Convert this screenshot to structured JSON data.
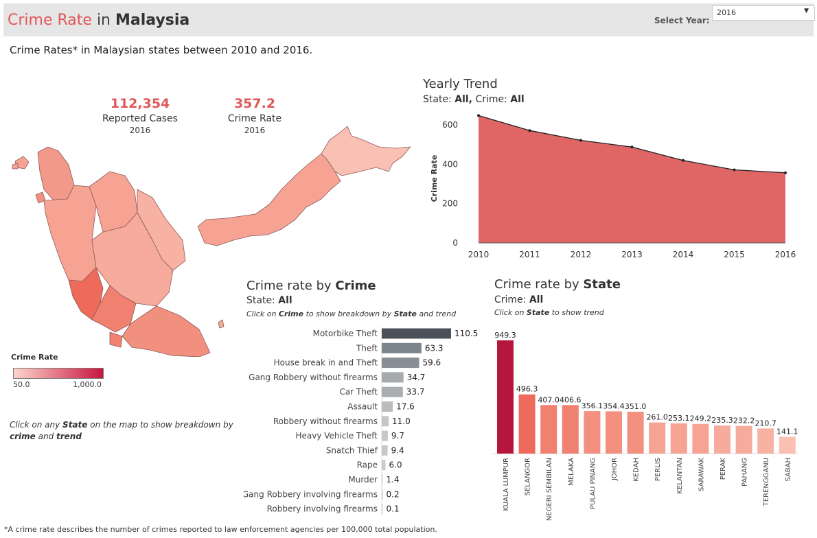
{
  "header": {
    "title_part1": "Crime Rate",
    "title_part2": "in",
    "title_part3": "Malaysia",
    "year_label": "Select Year:",
    "year_value": "2016",
    "caret_icon": "chevron-down-icon"
  },
  "subtitle": "Crime Rates* in Malaysian states between 2010 and 2016.",
  "kpis": {
    "cases_value": "112,354",
    "cases_label": "Reported Cases",
    "cases_year": "2016",
    "rate_value": "357.2",
    "rate_label": "Crime Rate",
    "rate_year": "2016"
  },
  "map": {
    "legend_title": "Crime Rate",
    "legend_min": "50.0",
    "legend_max": "1,000.0",
    "legend_color_low": "#fdd5cc",
    "legend_color_high": "#c7153e",
    "note_parts": [
      "Click on any ",
      "State",
      " on the map to show breakdown by ",
      "crime",
      " and ",
      "trend"
    ]
  },
  "trend": {
    "title": "Yearly Trend",
    "sub_prefix": "State:",
    "sub_state": "All,",
    "sub_crime_label": "Crime:",
    "sub_crime": "All"
  },
  "crime_panel": {
    "title_prefix": "Crime rate by",
    "title_bold": "Crime",
    "sub_prefix": "State:",
    "sub_value": "All",
    "note_parts": [
      "Click on ",
      "Crime",
      " to show breakdown by ",
      "State",
      " and trend"
    ]
  },
  "state_panel": {
    "title_prefix": "Crime rate by",
    "title_bold": "State",
    "sub_prefix": "Crime:",
    "sub_value": "All",
    "note_parts": [
      "Click on ",
      "State",
      " to show trend"
    ]
  },
  "footnote": "*A crime rate describes the number of crimes reported to law enforcement agencies per 100,000 total population.",
  "chart_data": [
    {
      "type": "area",
      "title": "Yearly Trend",
      "ylabel": "Crime Rate",
      "x": [
        2010,
        2011,
        2012,
        2013,
        2014,
        2015,
        2016
      ],
      "values": [
        648,
        572,
        522,
        488,
        420,
        372,
        357
      ],
      "yticks": [
        0,
        200,
        400,
        600
      ],
      "ylim": [
        0,
        660
      ],
      "color": "#e06666"
    },
    {
      "type": "bar",
      "orientation": "horizontal",
      "title": "Crime rate by Crime",
      "categories": [
        "Motorbike Theft",
        "Theft",
        "House break in and Theft",
        "Gang Robbery without firearms",
        "Car Theft",
        "Assault",
        "Robbery without firearms",
        "Heavy Vehicle Theft",
        "Snatch Thief",
        "Rape",
        "Murder",
        "Gang Robbery involving firearms",
        "Robbery involving firearms"
      ],
      "values": [
        110.5,
        63.3,
        59.6,
        34.7,
        33.7,
        17.6,
        11.0,
        9.7,
        9.4,
        6.0,
        1.4,
        0.2,
        0.1
      ],
      "labels": [
        "110.5",
        "63.3",
        "59.6",
        "34.7",
        "33.7",
        "17.6",
        "11.0",
        "9.7",
        "9.4",
        "6.0",
        "1.4",
        "0.2",
        "0.1"
      ],
      "colors": [
        "#4a5159",
        "#7c848c",
        "#878e95",
        "#a6aaad",
        "#a9adb0",
        "#bcbcbc",
        "#c6c6c6",
        "#c8c8c8",
        "#c8c8c8",
        "#cbcbcb",
        "#d0d0d0",
        "#d2d2d2",
        "#d2d2d2"
      ]
    },
    {
      "type": "bar",
      "orientation": "vertical",
      "title": "Crime rate by State",
      "categories": [
        "KUALA LUMPUR",
        "SELANGOR",
        "NEGERI SEMBILAN",
        "MELAKA",
        "PULAU PINANG",
        "JOHOR",
        "KEDAH",
        "PERLIS",
        "KELANTAN",
        "SARAWAK",
        "PERAK",
        "PAHANG",
        "TERENGGANU",
        "SABAH"
      ],
      "values": [
        949.3,
        496.3,
        407.0,
        406.6,
        356.1,
        354.4,
        351.0,
        261.0,
        253.1,
        249.2,
        235.3,
        232.2,
        210.7,
        141.1
      ],
      "labels": [
        "949.3",
        "496.3",
        "407.0",
        "406.6",
        "356.1",
        "354.4",
        "351.0",
        "261.0",
        "253.1",
        "249.2",
        "235.3",
        "232.2",
        "210.7",
        "141.1"
      ],
      "colors": [
        "#b5163b",
        "#ee6b5c",
        "#f08070",
        "#f08070",
        "#f39080",
        "#f39080",
        "#f39080",
        "#f6a394",
        "#f6a394",
        "#f6a394",
        "#f7ab9c",
        "#f7ab9c",
        "#f8b2a4",
        "#fac0b3"
      ]
    }
  ]
}
